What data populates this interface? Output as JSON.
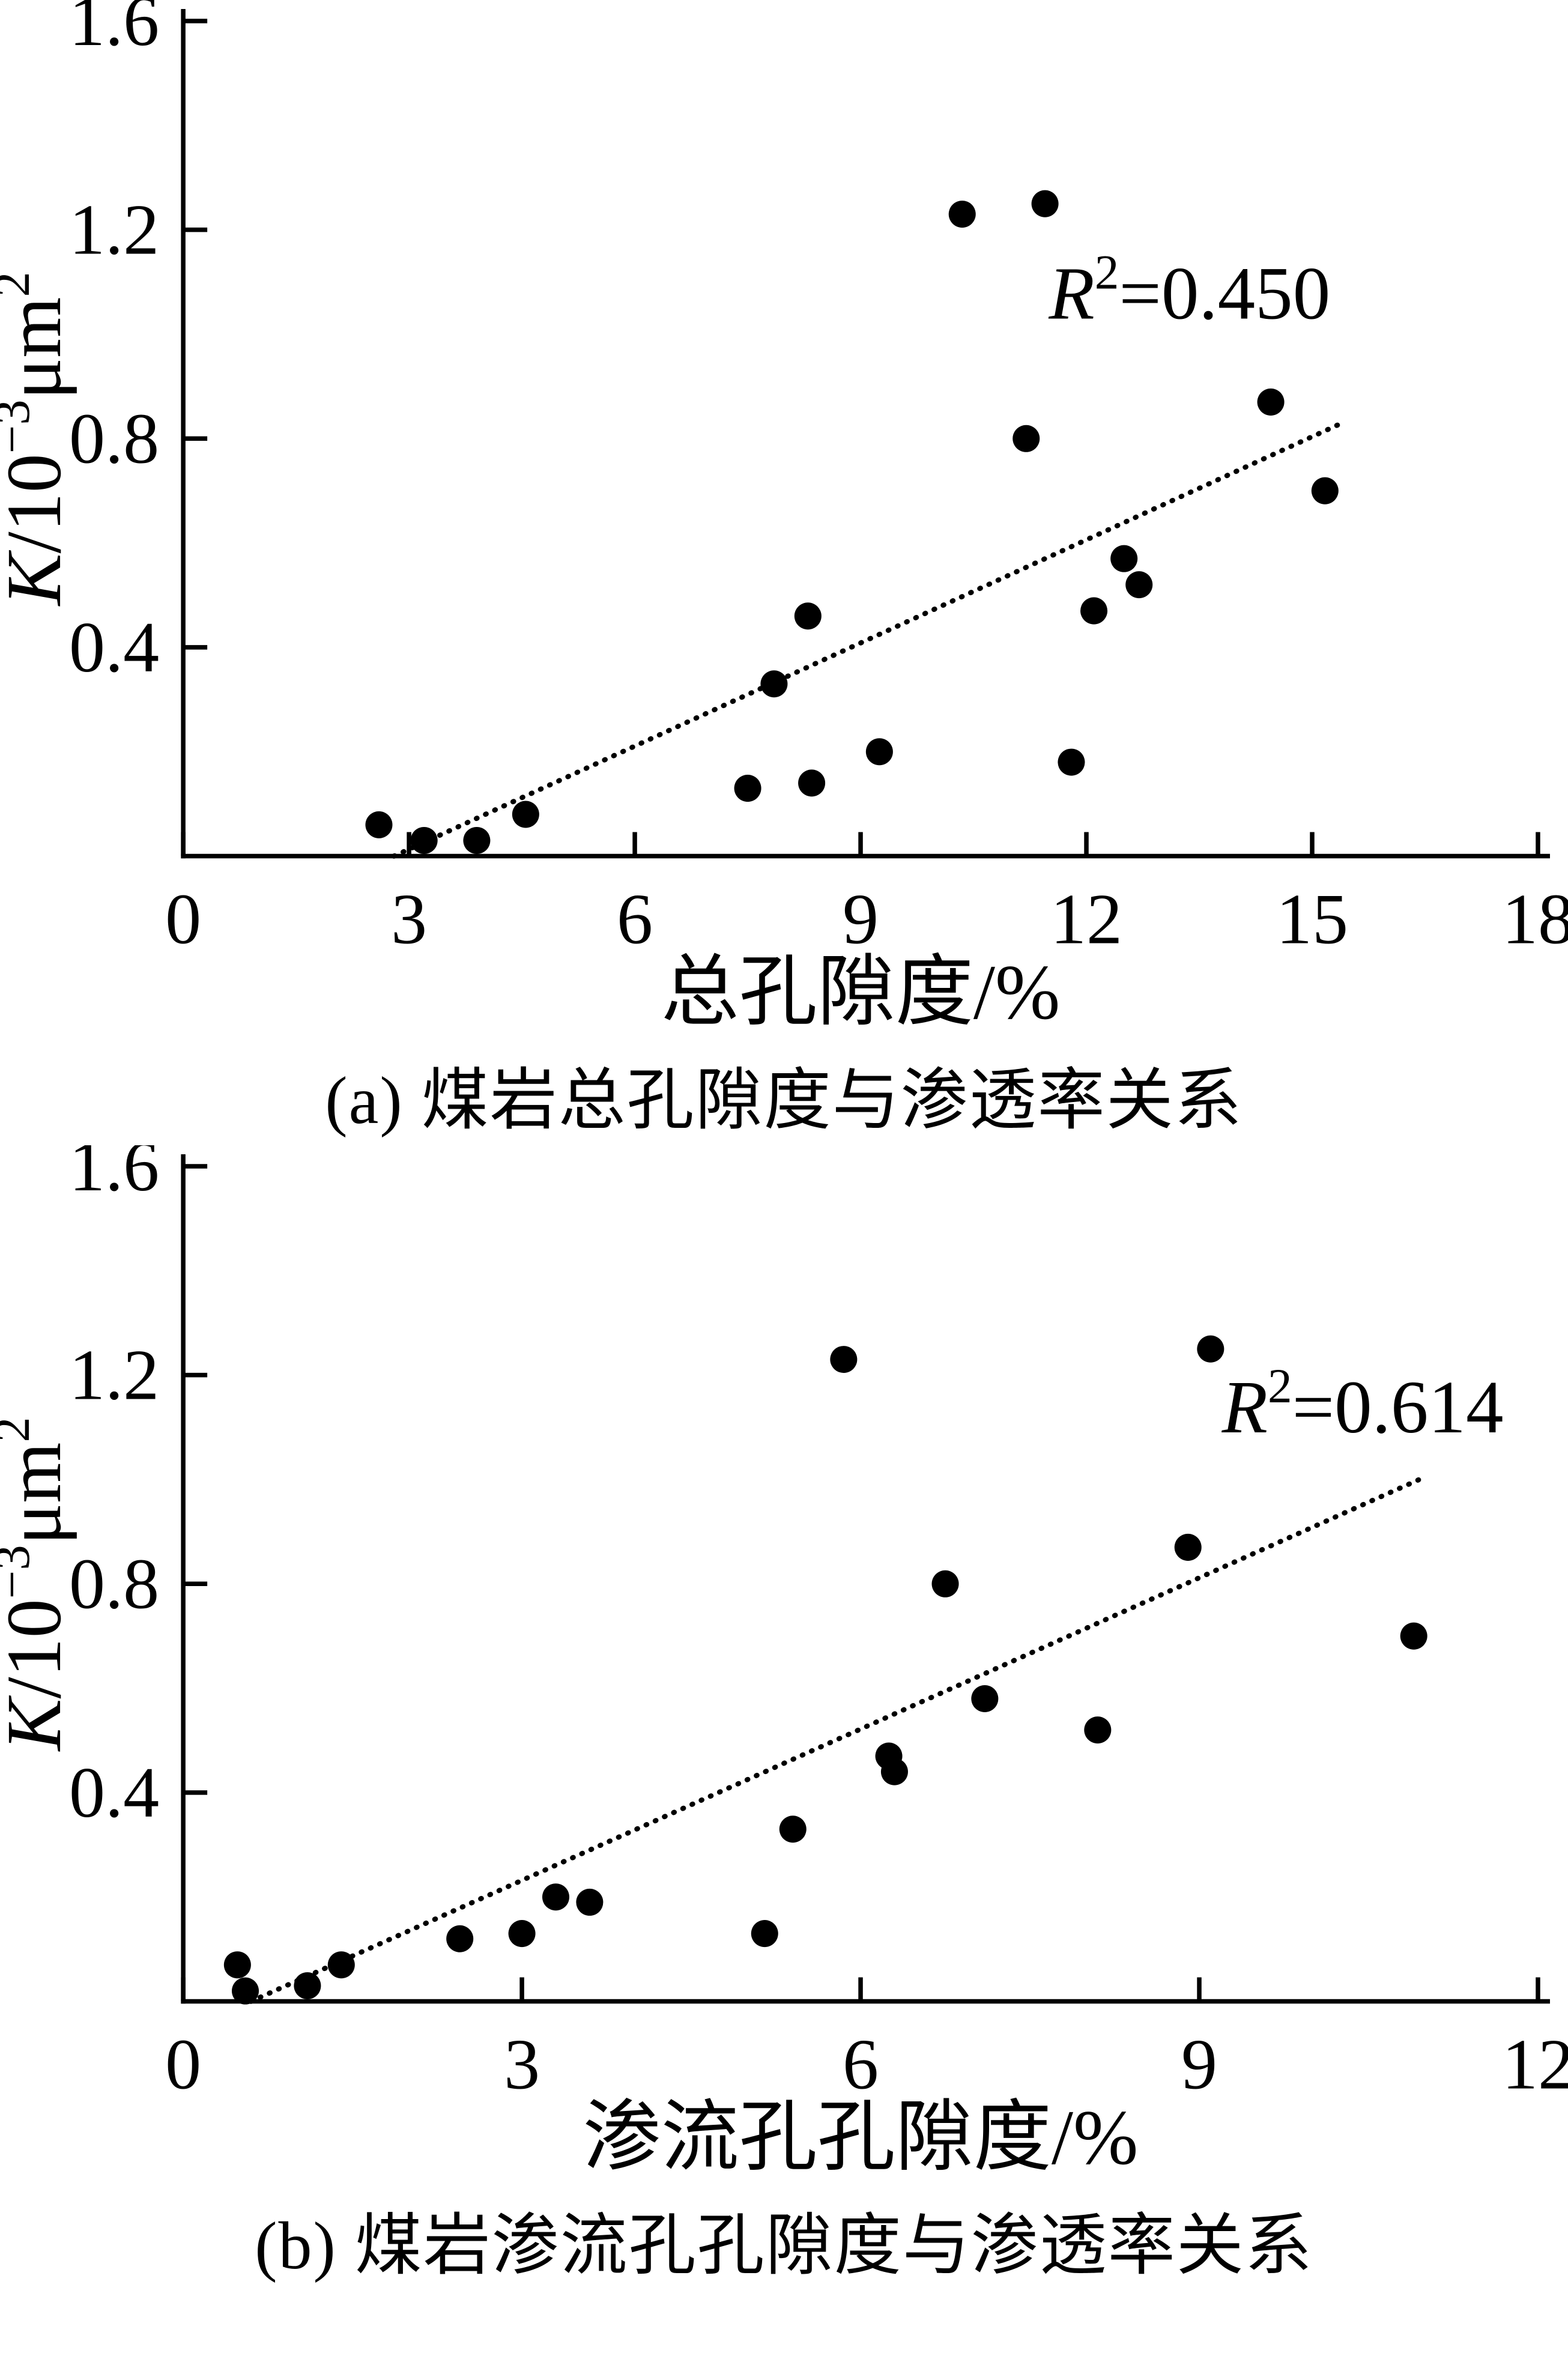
{
  "colors": {
    "ink": "#000000",
    "background": "#ffffff"
  },
  "chart_data": [
    {
      "type": "scatter",
      "caption": "(a) 煤岩总孔隙度与渗透率关系",
      "xlabel": "总孔隙度/%",
      "ylabel_text": "K/10⁻³μm²",
      "ylabel_parts": [
        {
          "t": "K",
          "italic": true
        },
        {
          "t": "/10"
        },
        {
          "t": "−3",
          "sup": true
        },
        {
          "t": "μm"
        },
        {
          "t": "2",
          "sup": true
        }
      ],
      "annotation": {
        "text": "R²=0.450",
        "parts": [
          {
            "t": "R",
            "italic": true
          },
          {
            "t": "2",
            "sup": true
          },
          {
            "t": "=0.450"
          }
        ],
        "x": 11.5,
        "y": 1.03
      },
      "xlim": [
        0,
        18
      ],
      "ylim": [
        0,
        1.6
      ],
      "xticks": [
        0,
        3,
        6,
        9,
        12,
        15,
        18
      ],
      "yticks": [
        0.4,
        0.8,
        1.2,
        1.6
      ],
      "grid": false,
      "points": [
        [
          2.6,
          0.06
        ],
        [
          3.2,
          0.03
        ],
        [
          3.9,
          0.03
        ],
        [
          4.55,
          0.08
        ],
        [
          7.5,
          0.13
        ],
        [
          7.85,
          0.33
        ],
        [
          8.3,
          0.46
        ],
        [
          8.35,
          0.14
        ],
        [
          9.25,
          0.2
        ],
        [
          10.35,
          1.23
        ],
        [
          11.2,
          0.8
        ],
        [
          11.45,
          1.25
        ],
        [
          11.8,
          0.18
        ],
        [
          12.1,
          0.47
        ],
        [
          12.5,
          0.57
        ],
        [
          12.7,
          0.52
        ],
        [
          14.45,
          0.87
        ],
        [
          15.17,
          0.7
        ]
      ],
      "trend": [
        [
          2.8,
          0.0
        ],
        [
          15.4,
          0.83
        ]
      ]
    },
    {
      "type": "scatter",
      "caption": "(b) 煤岩渗流孔孔隙度与渗透率关系",
      "xlabel": "渗流孔孔隙度/%",
      "ylabel_text": "K/10⁻³μm²",
      "ylabel_parts": [
        {
          "t": "K",
          "italic": true
        },
        {
          "t": "/10"
        },
        {
          "t": "−3",
          "sup": true
        },
        {
          "t": "μm"
        },
        {
          "t": "2",
          "sup": true
        }
      ],
      "annotation": {
        "text": "R²=0.614",
        "parts": [
          {
            "t": "R",
            "italic": true
          },
          {
            "t": "2",
            "sup": true
          },
          {
            "t": "=0.614"
          }
        ],
        "x": 9.2,
        "y": 1.09
      },
      "xlim": [
        0,
        12
      ],
      "ylim": [
        0,
        1.6
      ],
      "xticks": [
        0,
        3,
        6,
        9,
        12
      ],
      "yticks": [
        0.4,
        0.8,
        1.2,
        1.6
      ],
      "grid": false,
      "points": [
        [
          0.48,
          0.07
        ],
        [
          0.55,
          0.02
        ],
        [
          1.1,
          0.03
        ],
        [
          1.4,
          0.07
        ],
        [
          2.45,
          0.12
        ],
        [
          3.0,
          0.13
        ],
        [
          3.3,
          0.2
        ],
        [
          3.6,
          0.19
        ],
        [
          5.15,
          0.13
        ],
        [
          5.4,
          0.33
        ],
        [
          5.85,
          1.23
        ],
        [
          6.25,
          0.47
        ],
        [
          6.3,
          0.44
        ],
        [
          6.75,
          0.8
        ],
        [
          7.1,
          0.58
        ],
        [
          8.1,
          0.52
        ],
        [
          8.9,
          0.87
        ],
        [
          9.1,
          1.25
        ],
        [
          10.9,
          0.7
        ]
      ],
      "trend": [
        [
          0.6,
          0.0
        ],
        [
          10.95,
          1.0
        ]
      ]
    }
  ]
}
